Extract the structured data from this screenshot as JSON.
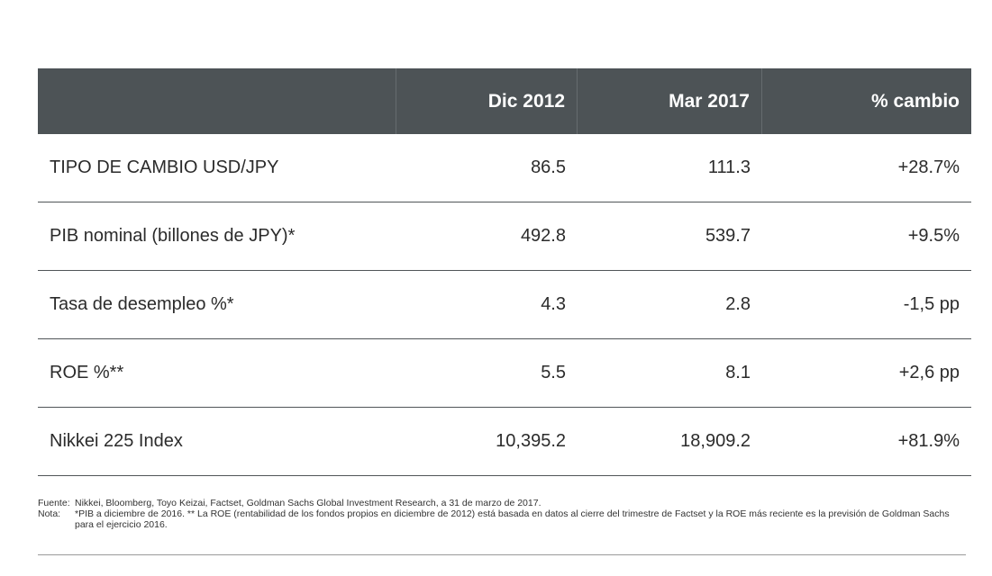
{
  "table": {
    "headers": [
      "",
      "Dic 2012",
      "Mar 2017",
      "% cambio"
    ],
    "rows": [
      {
        "label": "TIPO DE CAMBIO USD/JPY",
        "dic2012": "86.5",
        "mar2017": "111.3",
        "cambio": "+28.7%"
      },
      {
        "label": "PIB nominal (billones de JPY)*",
        "dic2012": "492.8",
        "mar2017": "539.7",
        "cambio": "+9.5%"
      },
      {
        "label": "Tasa de desempleo %*",
        "dic2012": "4.3",
        "mar2017": "2.8",
        "cambio": "-1,5 pp"
      },
      {
        "label": "ROE %**",
        "dic2012": "5.5",
        "mar2017": "8.1",
        "cambio": "+2,6 pp"
      },
      {
        "label": "Nikkei 225 Index",
        "dic2012": "10,395.2",
        "mar2017": "18,909.2",
        "cambio": "+81.9%"
      }
    ]
  },
  "footnotes": {
    "source_key": "Fuente:",
    "source_text": "Nikkei, Bloomberg, Toyo Keizai, Factset, Goldman Sachs Global Investment Research, a 31 de marzo de 2017.",
    "note_key": "Nota:",
    "note_text": "*PIB a diciembre de 2016. ** La ROE (rentabilidad de los fondos propios en diciembre de 2012) está basada en datos al cierre del trimestre de Factset y la ROE más reciente es la previsión de Goldman Sachs para el ejercicio 2016."
  },
  "colors": {
    "header_bg": "#4d5356",
    "header_text": "#ffffff",
    "row_rule": "#505558"
  }
}
